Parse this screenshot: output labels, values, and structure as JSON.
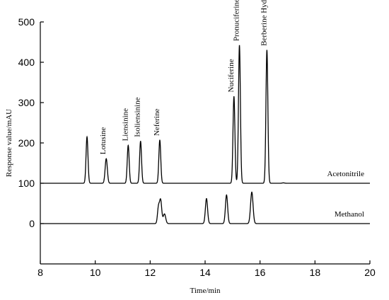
{
  "chart_data": {
    "type": "line",
    "xlabel": "Time/min",
    "ylabel": "Response value/mAU",
    "xlim": [
      8,
      20
    ],
    "ylim": [
      -120,
      500
    ],
    "x_ticks": [
      "8",
      "10",
      "12",
      "14",
      "16",
      "18",
      "20"
    ],
    "y_ticks": [
      "0",
      "100",
      "200",
      "300",
      "400",
      "500"
    ],
    "grid": false,
    "series": [
      {
        "name": "Acetonitrile",
        "baseline": 100,
        "peaks": [
          {
            "x": 9.7,
            "y": 215,
            "width": 0.035
          },
          {
            "x": 10.4,
            "y": 161,
            "width": 0.04
          },
          {
            "x": 11.2,
            "y": 194,
            "width": 0.035
          },
          {
            "x": 11.65,
            "y": 204,
            "width": 0.035
          },
          {
            "x": 12.35,
            "y": 207,
            "width": 0.035
          },
          {
            "x": 15.05,
            "y": 315,
            "width": 0.035
          },
          {
            "x": 15.25,
            "y": 442,
            "width": 0.035
          },
          {
            "x": 16.25,
            "y": 430,
            "width": 0.035
          },
          {
            "x": 16.85,
            "y": 101,
            "width": 0.04
          }
        ]
      },
      {
        "name": "Methanol",
        "baseline": 0,
        "peaks": [
          {
            "x": 12.3,
            "y": 38,
            "width": 0.035
          },
          {
            "x": 12.38,
            "y": 58,
            "width": 0.04
          },
          {
            "x": 12.52,
            "y": 24,
            "width": 0.045
          },
          {
            "x": 14.05,
            "y": 62,
            "width": 0.04
          },
          {
            "x": 14.78,
            "y": 71,
            "width": 0.04
          },
          {
            "x": 15.7,
            "y": 78,
            "width": 0.045
          }
        ]
      }
    ],
    "peak_labels": [
      {
        "text": "Lotusine",
        "x": 10.4,
        "y": 161
      },
      {
        "text": "Liensinine",
        "x": 11.2,
        "y": 194
      },
      {
        "text": "Isoliensinine",
        "x": 11.65,
        "y": 204
      },
      {
        "text": "Neferine",
        "x": 12.35,
        "y": 207
      },
      {
        "text": "Nuciferine",
        "x": 15.05,
        "y": 315
      },
      {
        "text": "Pronuciferine",
        "x": 15.25,
        "y": 442
      },
      {
        "text": "Berberine Hydrochloride",
        "x": 16.25,
        "y": 430
      }
    ],
    "trace_labels": [
      {
        "text": "Acetonitrile",
        "series": 0
      },
      {
        "text": "Methanol",
        "series": 1
      }
    ]
  }
}
